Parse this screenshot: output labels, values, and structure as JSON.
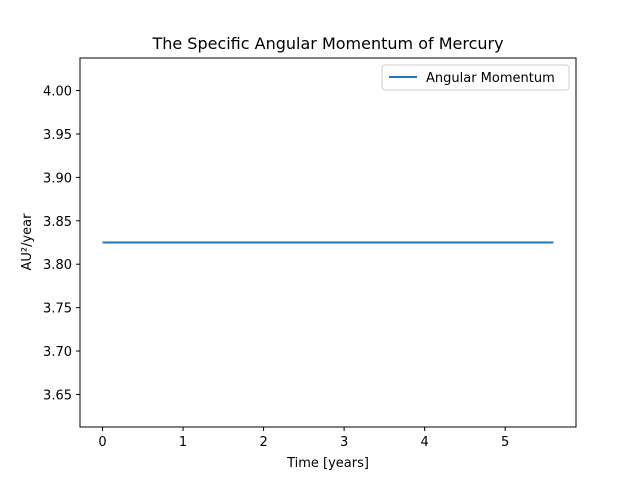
{
  "chart_data": {
    "type": "line",
    "title": "The Specific Angular Momentum of Mercury",
    "xlabel": "Time [years]",
    "ylabel": "AU²/year",
    "xlim": [
      -0.28,
      5.88
    ],
    "ylim": [
      3.6125,
      4.0375
    ],
    "xticks": [
      0,
      1,
      2,
      3,
      4,
      5
    ],
    "xtick_labels": [
      "0",
      "1",
      "2",
      "3",
      "4",
      "5"
    ],
    "yticks": [
      3.65,
      3.7,
      3.75,
      3.8,
      3.85,
      3.9,
      3.95,
      4.0
    ],
    "ytick_labels": [
      "3.65",
      "3.70",
      "3.75",
      "3.80",
      "3.85",
      "3.90",
      "3.95",
      "4.00"
    ],
    "grid": false,
    "legend": {
      "placement": "top-right",
      "entries": [
        "Angular Momentum"
      ]
    },
    "series": [
      {
        "name": "Angular Momentum",
        "color": "#1f77b4",
        "x": [
          0,
          5.6
        ],
        "y": [
          3.825,
          3.825
        ]
      }
    ]
  }
}
